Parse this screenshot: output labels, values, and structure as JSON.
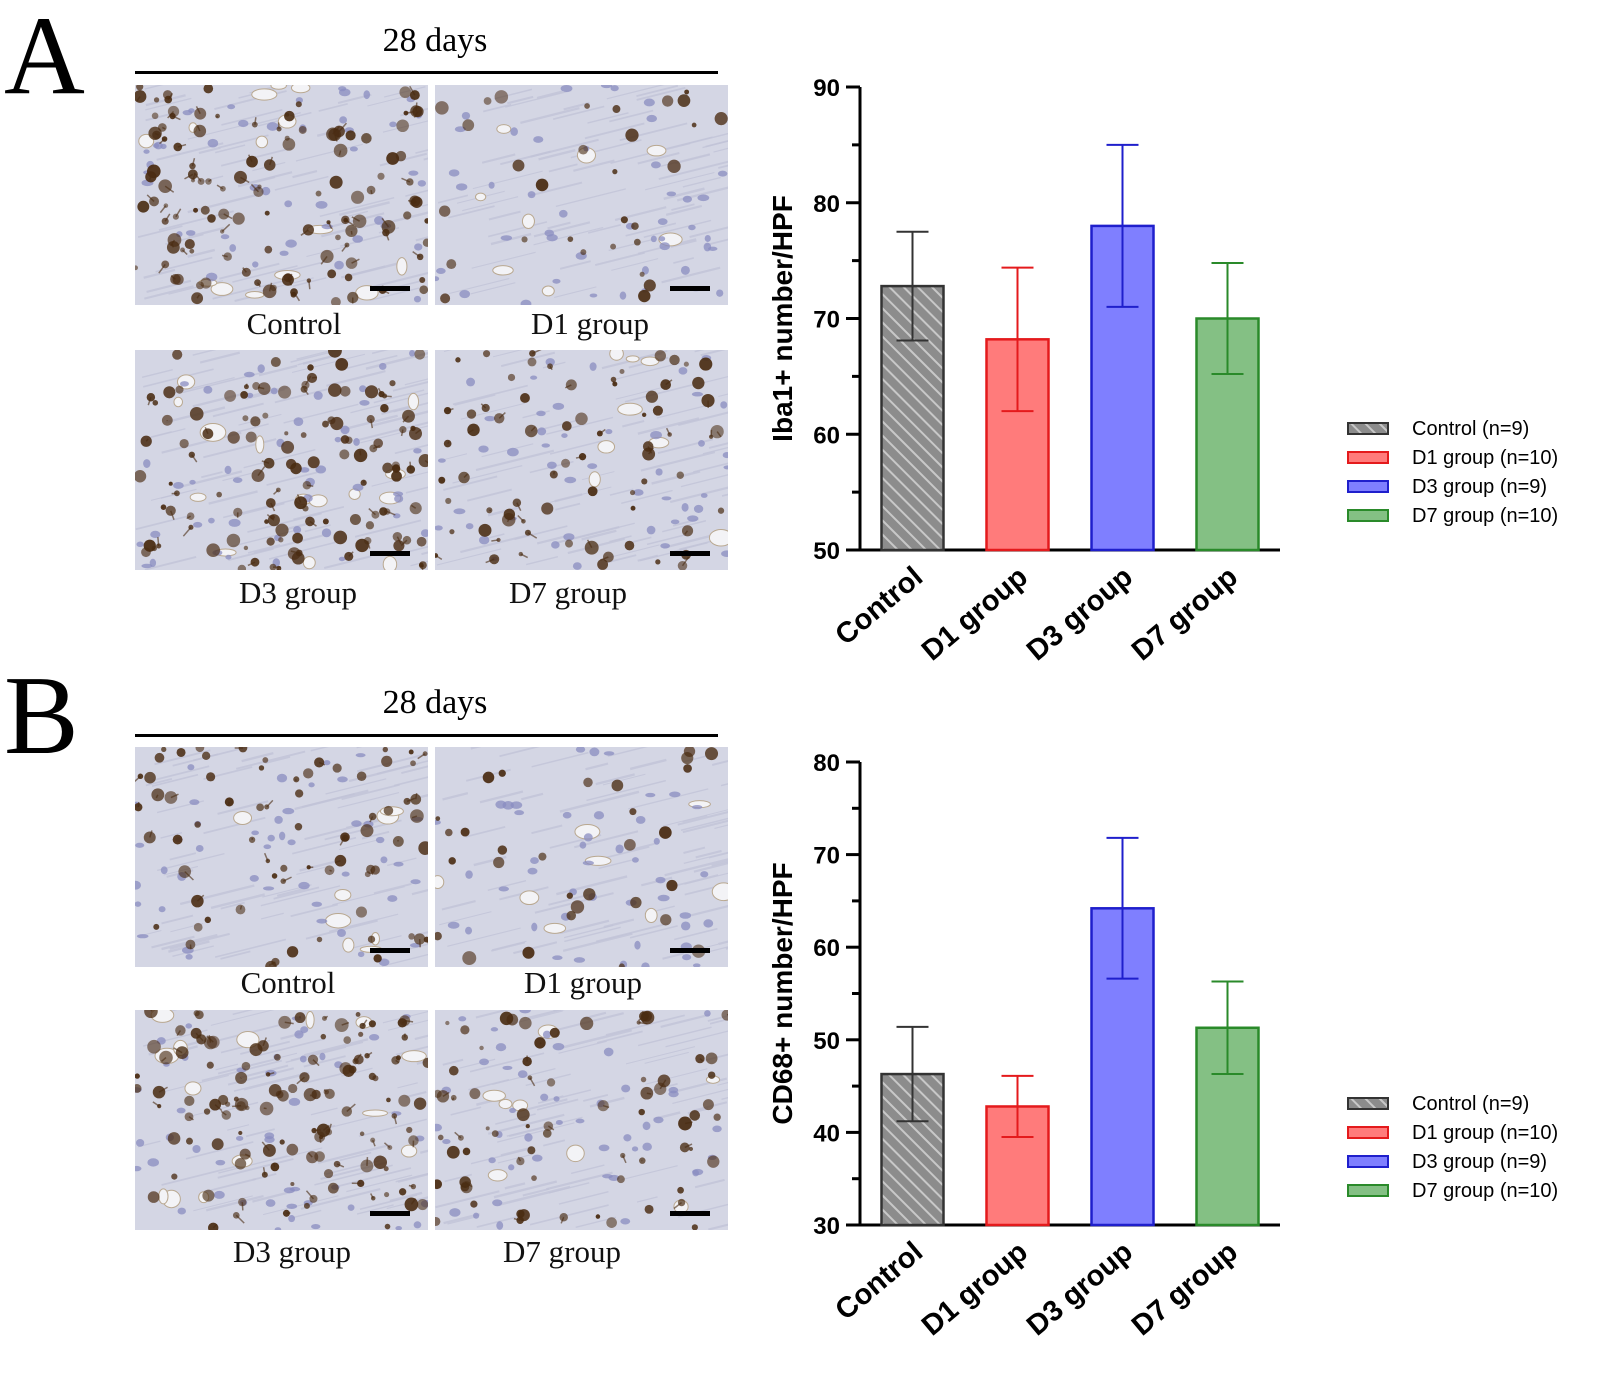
{
  "panels": [
    {
      "letter": "A",
      "timepoint": "28 days",
      "images": [
        {
          "caption": "Control",
          "stain": "dense"
        },
        {
          "caption": "D1 group",
          "stain": "sparse"
        },
        {
          "caption": "D3 group",
          "stain": "dense"
        },
        {
          "caption": "D7 group",
          "stain": "medium"
        }
      ]
    },
    {
      "letter": "B",
      "timepoint": "28 days",
      "images": [
        {
          "caption": "Control",
          "stain": "medium"
        },
        {
          "caption": "D1 group",
          "stain": "sparse"
        },
        {
          "caption": "D3 group",
          "stain": "dense"
        },
        {
          "caption": "D7 group",
          "stain": "medium"
        }
      ]
    }
  ],
  "colors": {
    "control_fill": "#8c8c8c",
    "control_stroke": "#333333",
    "d1_fill": "#ff7b7b",
    "d1_stroke": "#e41a1c",
    "d3_fill": "#7f7fff",
    "d3_stroke": "#1f1fcc",
    "d7_fill": "#84c084",
    "d7_stroke": "#2a8a2a",
    "tissue_bg": "#d4d6e4",
    "stain_dark": "#4a2c12",
    "nucleus": "#8a8cc0"
  },
  "chart_data": [
    {
      "type": "bar",
      "categories": [
        "Control",
        "D1 group",
        "D3 group",
        "D7 group"
      ],
      "values": [
        72.8,
        68.2,
        78.0,
        70.0
      ],
      "errors": [
        4.7,
        6.2,
        7.0,
        4.8
      ],
      "ylabel": "Iba1+ number/HPF",
      "ylim": [
        50,
        90
      ],
      "yticks": [
        50,
        60,
        70,
        80,
        90
      ],
      "legend": [
        "Control (n=9)",
        "D1 group (n=10)",
        "D3 group (n=9)",
        "D7 group (n=10)"
      ],
      "legend_position": "right",
      "grid": false
    },
    {
      "type": "bar",
      "categories": [
        "Control",
        "D1 group",
        "D3 group",
        "D7 group"
      ],
      "values": [
        46.3,
        42.8,
        64.2,
        51.3
      ],
      "errors": [
        5.1,
        3.3,
        7.6,
        5.0
      ],
      "ylabel": "CD68+ number/HPF",
      "ylim": [
        30,
        80
      ],
      "yticks": [
        30,
        40,
        50,
        60,
        70,
        80
      ],
      "legend": [
        "Control (n=9)",
        "D1 group (n=10)",
        "D3 group (n=9)",
        "D7 group (n=10)"
      ],
      "legend_position": "right",
      "grid": false
    }
  ]
}
